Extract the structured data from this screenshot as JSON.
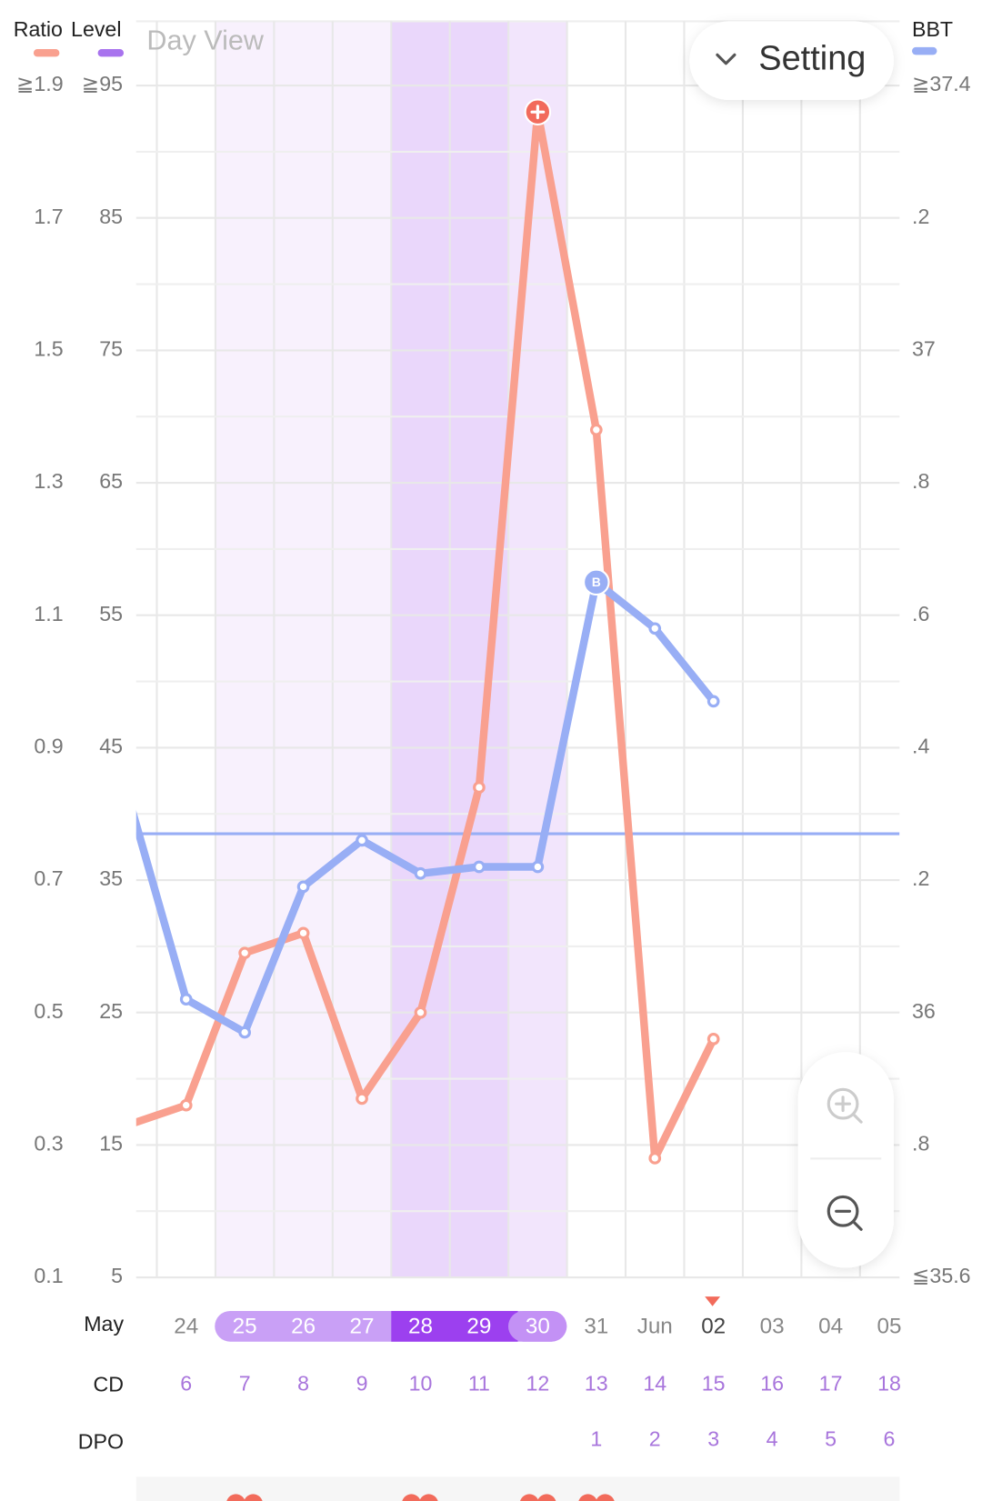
{
  "header": {
    "view_label": "Day View",
    "setting": "Setting"
  },
  "chart_data": {
    "type": "line",
    "month_label": "May",
    "categories": [
      null,
      "24",
      "25",
      "26",
      "27",
      "28",
      "29",
      "30",
      "31",
      "Jun",
      "02",
      "03",
      "04",
      "05"
    ],
    "cd_label": "CD",
    "cd": [
      null,
      6,
      7,
      8,
      9,
      10,
      11,
      12,
      13,
      14,
      15,
      16,
      17,
      18
    ],
    "dpo_label": "DPO",
    "dpo": [
      null,
      null,
      null,
      null,
      null,
      null,
      null,
      null,
      1,
      2,
      3,
      4,
      5,
      6
    ],
    "ylim": [
      0.1,
      1.9
    ],
    "yticks": [
      {
        "value": 1.9,
        "label": "≧1.9"
      },
      1.7,
      1.5,
      1.3,
      1.1,
      0.9,
      0.7,
      0.5,
      0.3,
      0.1
    ],
    "y_level": {
      "name": "Level",
      "color": "#a873ee",
      "lim": [
        5,
        95
      ],
      "ticks": [
        {
          "value": 95,
          "label": "≧95"
        },
        85,
        75,
        65,
        55,
        45,
        35,
        25,
        15,
        5
      ]
    },
    "y2lim": [
      35.6,
      37.4
    ],
    "y2ticks": [
      {
        "value": 37.4,
        "label": "≧37.4"
      },
      {
        "value": 37.2,
        "label": ".2"
      },
      37,
      {
        "value": 36.8,
        "label": ".8"
      },
      {
        "value": 36.6,
        "label": ".6"
      },
      {
        "value": 36.4,
        "label": ".4"
      },
      {
        "value": 36.2,
        "label": ".2"
      },
      36,
      {
        "value": 35.8,
        "label": ".8"
      },
      {
        "value": 35.6,
        "label": "≦35.6"
      }
    ],
    "coverline": 36.27,
    "series": [
      {
        "name": "Ratio",
        "color": "#f9a08f",
        "values": [
          0.33,
          0.36,
          0.59,
          0.62,
          0.37,
          0.5,
          0.84,
          1.86,
          1.38,
          0.28,
          0.46,
          null,
          null,
          null
        ],
        "highlight_index": 7,
        "highlight_color": "#f26b5b"
      },
      {
        "name": "BBT",
        "color": "#98aef5",
        "axis": "y2",
        "values": [
          36.33,
          36.02,
          35.97,
          36.19,
          36.26,
          36.21,
          36.22,
          36.22,
          36.65,
          36.58,
          36.47,
          null,
          null,
          null
        ],
        "highlight_index": 8,
        "highlight_label": "B"
      }
    ]
  }
}
